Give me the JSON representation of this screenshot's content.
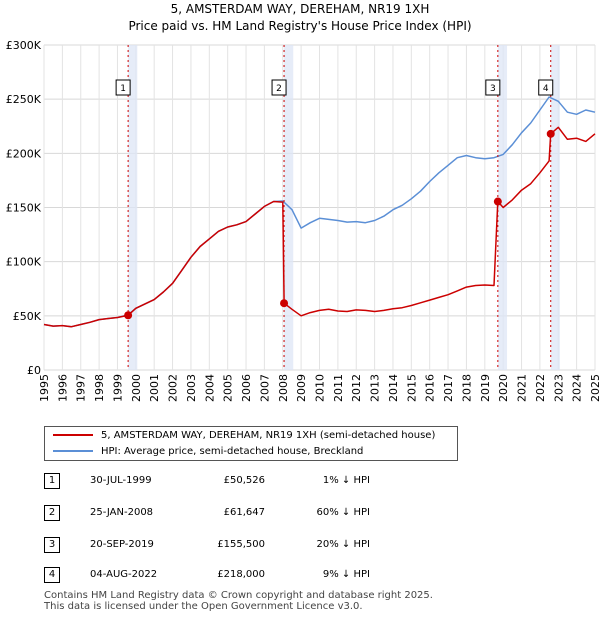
{
  "chart_data": {
    "type": "line",
    "title": "5, AMSTERDAM WAY, DEREHAM, NR19 1XH",
    "subtitle": "Price paid vs. HM Land Registry's House Price Index (HPI)",
    "xlabel": "",
    "ylabel": "",
    "xlim": [
      1995,
      2025
    ],
    "ylim": [
      0,
      300000
    ],
    "x_ticks": [
      "1995",
      "1996",
      "1997",
      "1998",
      "1999",
      "2000",
      "2001",
      "2002",
      "2003",
      "2004",
      "2005",
      "2006",
      "2007",
      "2008",
      "2009",
      "2010",
      "2011",
      "2012",
      "2013",
      "2014",
      "2015",
      "2016",
      "2017",
      "2018",
      "2019",
      "2020",
      "2021",
      "2022",
      "2023",
      "2024",
      "2025"
    ],
    "y_ticks": [
      {
        "value": 0,
        "label": "£0"
      },
      {
        "value": 50000,
        "label": "£50K"
      },
      {
        "value": 100000,
        "label": "£100K"
      },
      {
        "value": 150000,
        "label": "£150K"
      },
      {
        "value": 200000,
        "label": "£200K"
      },
      {
        "value": 250000,
        "label": "£250K"
      },
      {
        "value": 300000,
        "label": "£300K"
      }
    ],
    "grid": true,
    "series": [
      {
        "name": "5, AMSTERDAM WAY, DEREHAM, NR19 1XH (semi-detached house)",
        "color": "#cc0000",
        "x": [
          1995.0,
          1995.5,
          1996.0,
          1996.5,
          1997.0,
          1997.5,
          1998.0,
          1998.5,
          1999.0,
          1999.58,
          2000.0,
          2000.5,
          2001.0,
          2001.5,
          2002.0,
          2002.5,
          2003.0,
          2003.5,
          2004.0,
          2004.5,
          2005.0,
          2005.5,
          2006.0,
          2006.5,
          2007.0,
          2007.5,
          2008.0,
          2008.07,
          2008.5,
          2009.0,
          2009.5,
          2010.0,
          2010.5,
          2011.0,
          2011.5,
          2012.0,
          2012.5,
          2013.0,
          2013.5,
          2014.0,
          2014.5,
          2015.0,
          2015.5,
          2016.0,
          2016.5,
          2017.0,
          2017.5,
          2018.0,
          2018.5,
          2019.0,
          2019.5,
          2019.71,
          2020.0,
          2020.5,
          2021.0,
          2021.5,
          2022.0,
          2022.5,
          2022.59,
          2023.0,
          2023.5,
          2024.0,
          2024.5,
          2025.0
        ],
        "values": [
          42000,
          40500,
          41000,
          40000,
          42000,
          44000,
          46500,
          47500,
          48500,
          50526,
          57000,
          61000,
          65000,
          72000,
          80000,
          92000,
          104000,
          114000,
          121000,
          128000,
          132000,
          134000,
          137000,
          144000,
          151000,
          155500,
          155000,
          61647,
          56000,
          50000,
          53000,
          55000,
          56000,
          54500,
          54000,
          55500,
          55000,
          54000,
          55000,
          56500,
          57500,
          59500,
          62000,
          64500,
          67000,
          69500,
          73000,
          76500,
          78000,
          78500,
          78000,
          155500,
          150000,
          157000,
          166000,
          172000,
          182000,
          193000,
          218000,
          224000,
          213000,
          214000,
          211000,
          218000
        ]
      },
      {
        "name": "HPI: Average price, semi-detached house, Breckland",
        "color": "#5b8fd6",
        "x": [
          1995.0,
          1995.5,
          1996.0,
          1996.5,
          1997.0,
          1997.5,
          1998.0,
          1998.5,
          1999.0,
          1999.58,
          2000.0,
          2000.5,
          2001.0,
          2001.5,
          2002.0,
          2002.5,
          2003.0,
          2003.5,
          2004.0,
          2004.5,
          2005.0,
          2005.5,
          2006.0,
          2006.5,
          2007.0,
          2007.5,
          2008.0,
          2008.5,
          2009.0,
          2009.5,
          2010.0,
          2010.5,
          2011.0,
          2011.5,
          2012.0,
          2012.5,
          2013.0,
          2013.5,
          2014.0,
          2014.5,
          2015.0,
          2015.5,
          2016.0,
          2016.5,
          2017.0,
          2017.5,
          2018.0,
          2018.5,
          2019.0,
          2019.5,
          2020.0,
          2020.5,
          2021.0,
          2021.5,
          2022.0,
          2022.5,
          2023.0,
          2023.5,
          2024.0,
          2024.5,
          2025.0
        ],
        "values": [
          42000,
          40500,
          41000,
          40000,
          42000,
          44000,
          46500,
          47500,
          48500,
          51000,
          57000,
          61000,
          65000,
          72000,
          80000,
          92000,
          104000,
          114000,
          121000,
          128000,
          132000,
          134000,
          137000,
          144000,
          151000,
          155500,
          156000,
          148000,
          131000,
          136000,
          140000,
          139000,
          138000,
          136500,
          137000,
          136000,
          138000,
          142000,
          148000,
          152000,
          158000,
          165000,
          174000,
          182000,
          189000,
          196000,
          198000,
          196000,
          195000,
          196000,
          199000,
          208000,
          219000,
          228000,
          240000,
          252000,
          248000,
          238000,
          236000,
          240000,
          238000
        ]
      }
    ],
    "sales": [
      {
        "num": "1",
        "x": 1999.58,
        "value": 50526
      },
      {
        "num": "2",
        "x": 2008.07,
        "value": 61647
      },
      {
        "num": "3",
        "x": 2019.71,
        "value": 155500
      },
      {
        "num": "4",
        "x": 2022.59,
        "value": 218000
      }
    ]
  },
  "legend": {
    "property_label": "5, AMSTERDAM WAY, DEREHAM, NR19 1XH (semi-detached house)",
    "hpi_label": "HPI: Average price, semi-detached house, Breckland"
  },
  "sales_table": [
    {
      "num": "1",
      "date": "30-JUL-1999",
      "price": "£50,526",
      "hpi": "1% ↓ HPI"
    },
    {
      "num": "2",
      "date": "25-JAN-2008",
      "price": "£61,647",
      "hpi": "60% ↓ HPI"
    },
    {
      "num": "3",
      "date": "20-SEP-2019",
      "price": "£155,500",
      "hpi": "20% ↓ HPI"
    },
    {
      "num": "4",
      "date": "04-AUG-2022",
      "price": "£218,000",
      "hpi": "9% ↓ HPI"
    }
  ],
  "footer": {
    "line1": "Contains HM Land Registry data © Crown copyright and database right 2025.",
    "line2": "This data is licensed under the Open Government Licence v3.0."
  }
}
